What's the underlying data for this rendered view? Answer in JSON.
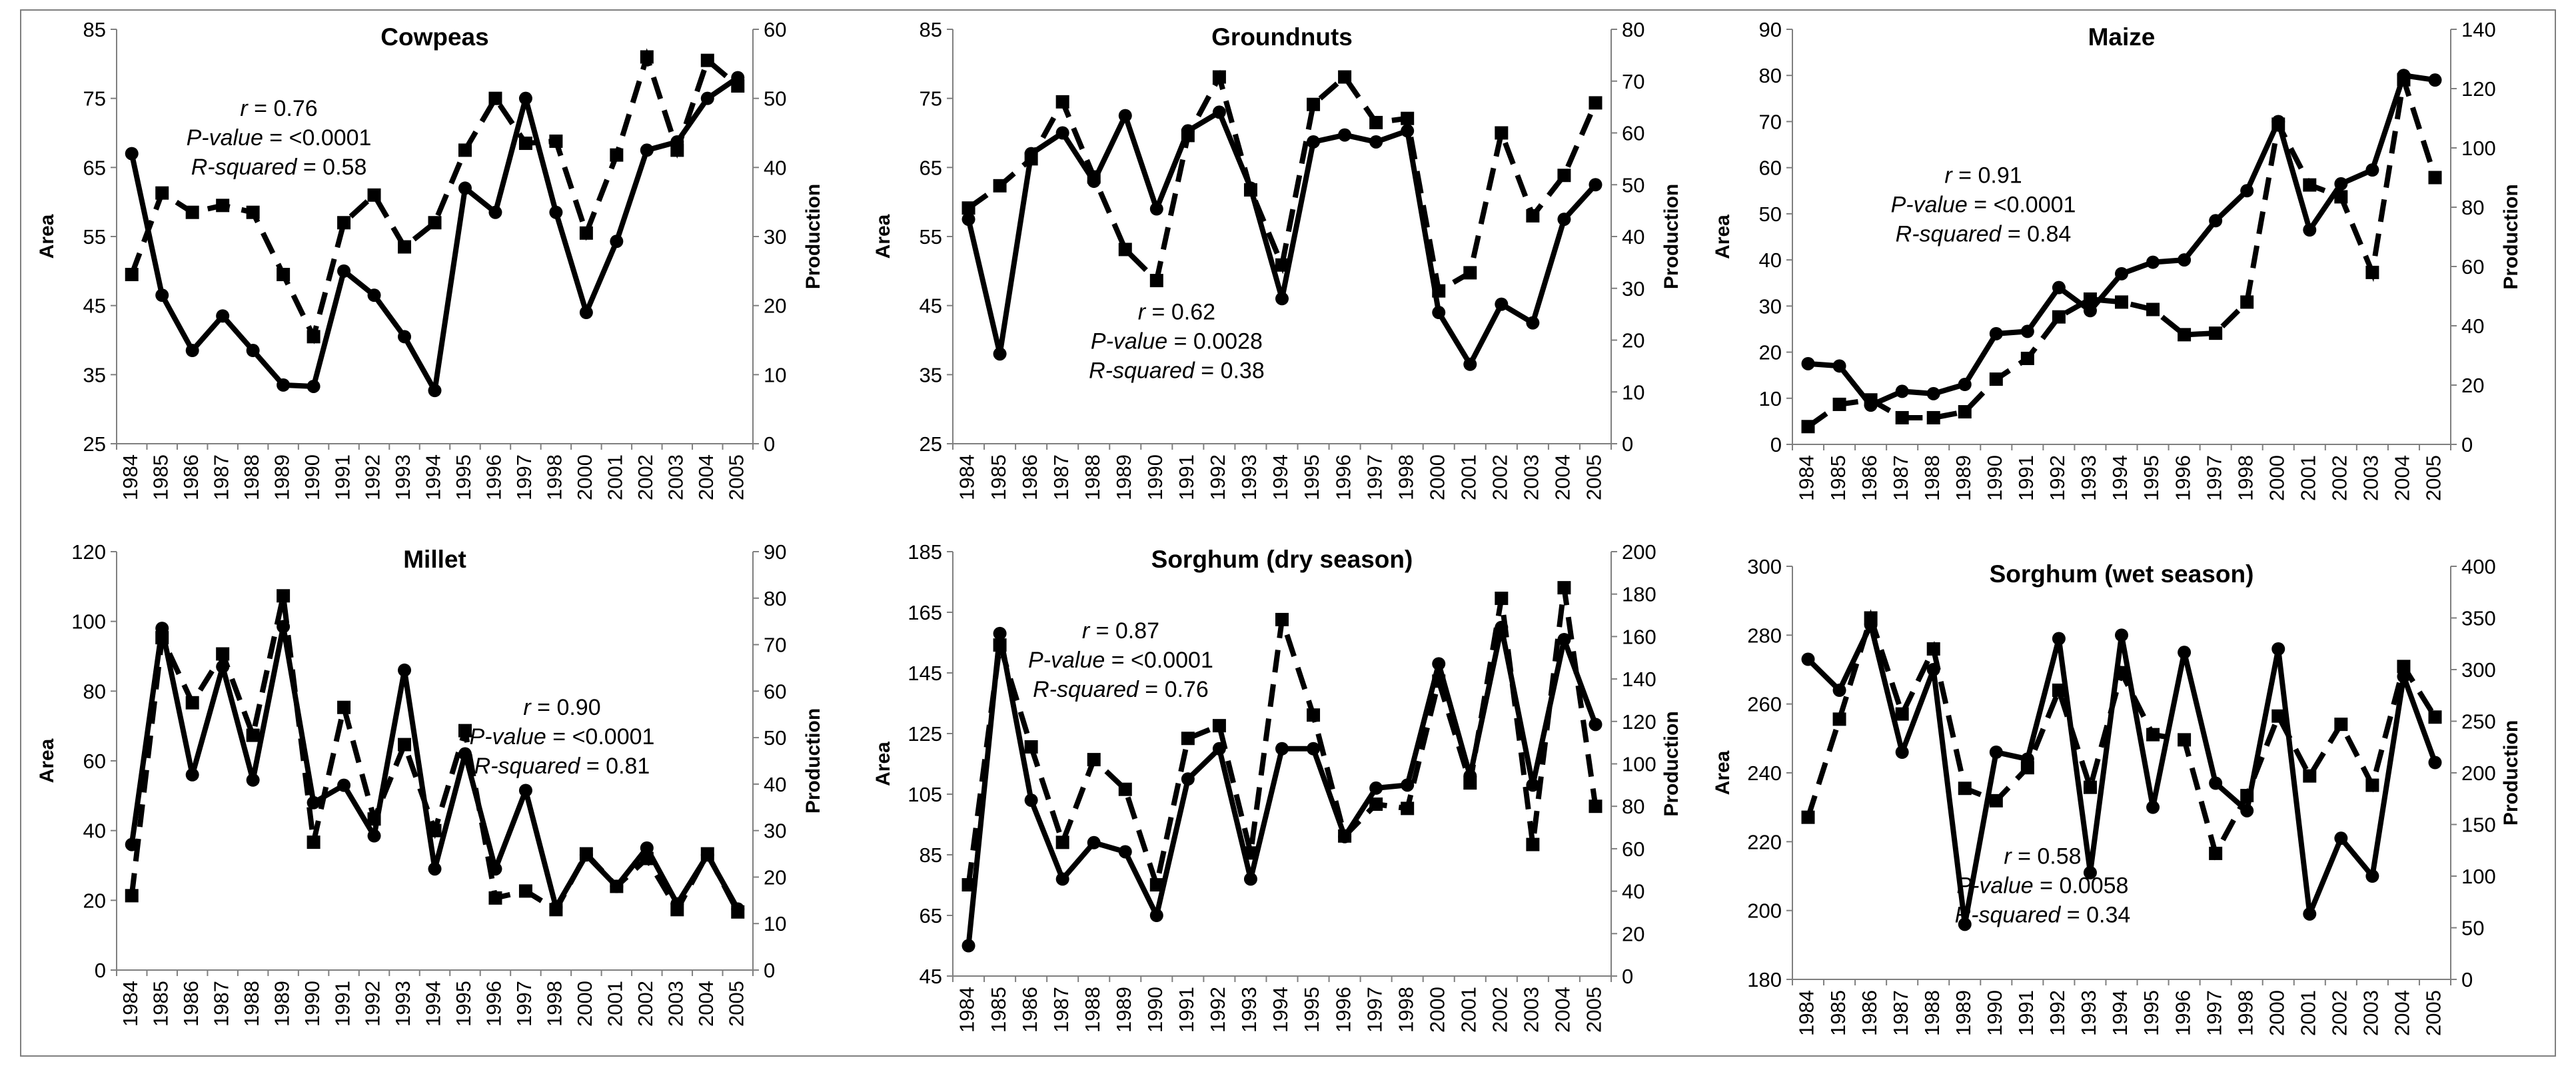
{
  "chart_data": [
    {
      "type": "line",
      "title": "Cowpeas",
      "x": [
        "1984",
        "1985",
        "1986",
        "1987",
        "1988",
        "1989",
        "1990",
        "1991",
        "1992",
        "1993",
        "1994",
        "1995",
        "1996",
        "1997",
        "1998",
        "2000",
        "2001",
        "2002",
        "2003",
        "2004",
        "2005"
      ],
      "series": [
        {
          "name": "Area",
          "axis": "left",
          "style": "solid-circle",
          "values": [
            67,
            46.5,
            38.5,
            43.5,
            38.5,
            33.5,
            33.3,
            50,
            46.5,
            40.5,
            32.7,
            62,
            58.5,
            75,
            58.5,
            44,
            54.3,
            67.5,
            68.7,
            75,
            78
          ]
        },
        {
          "name": "Production",
          "axis": "right",
          "style": "dashed-square",
          "values": [
            24.5,
            36.3,
            33.5,
            34.5,
            33.5,
            24.5,
            15.5,
            32,
            36,
            28.5,
            32,
            42.5,
            50,
            43.5,
            43.8,
            30.5,
            41.8,
            56,
            42.5,
            55.5,
            51.8
          ]
        }
      ],
      "yleft": {
        "label": "Area",
        "min": 25,
        "max": 85,
        "ticks": [
          25,
          35,
          45,
          55,
          65,
          75,
          85
        ]
      },
      "yright": {
        "label": "Production",
        "min": 0,
        "max": 60,
        "ticks": [
          0,
          10,
          20,
          30,
          40,
          50,
          60
        ]
      },
      "annotation": {
        "position": "upper-left",
        "lines": [
          {
            "pre": "",
            "ital": "r",
            "post": " = 0.76"
          },
          {
            "pre": "",
            "ital": "P-value",
            "post": " = <0.0001"
          },
          {
            "pre": "",
            "ital": "R-squared",
            "post": " = 0.58"
          }
        ]
      }
    },
    {
      "type": "line",
      "title": "Groundnuts",
      "x": [
        "1984",
        "1985",
        "1986",
        "1987",
        "1988",
        "1989",
        "1990",
        "1991",
        "1992",
        "1993",
        "1994",
        "1995",
        "1996",
        "1997",
        "1998",
        "2000",
        "2001",
        "2002",
        "2003",
        "2004",
        "2005"
      ],
      "series": [
        {
          "name": "Area",
          "axis": "left",
          "style": "solid-circle",
          "values": [
            57.5,
            38,
            67,
            70,
            63,
            72.5,
            59,
            70.3,
            73,
            62,
            46,
            68.7,
            69.7,
            68.7,
            70.3,
            44,
            36.5,
            45.2,
            42.5,
            57.5,
            62.5
          ]
        },
        {
          "name": "Production",
          "axis": "right",
          "style": "dashed-square",
          "values": [
            45.5,
            49.8,
            55,
            66,
            51.5,
            37.5,
            31.5,
            59.5,
            70.8,
            49,
            34.5,
            65.5,
            70.8,
            62,
            62.8,
            29.5,
            33,
            60,
            44,
            51.8,
            65.8
          ]
        }
      ],
      "yleft": {
        "label": "Area",
        "min": 25,
        "max": 85,
        "ticks": [
          25,
          35,
          45,
          55,
          65,
          75,
          85
        ]
      },
      "yright": {
        "label": "Production",
        "min": 0,
        "max": 80,
        "ticks": [
          0,
          10,
          20,
          30,
          40,
          50,
          60,
          70,
          80
        ]
      },
      "annotation": {
        "position": "lower-left",
        "lines": [
          {
            "pre": "",
            "ital": "r",
            "post": " = 0.62"
          },
          {
            "pre": "",
            "ital": "P-value",
            "post": " = 0.0028"
          },
          {
            "pre": "",
            "ital": "R-squared",
            "post": " = 0.38"
          }
        ]
      }
    },
    {
      "type": "line",
      "title": "Maize",
      "x": [
        "1984",
        "1985",
        "1986",
        "1987",
        "1988",
        "1989",
        "1990",
        "1991",
        "1992",
        "1993",
        "1994",
        "1995",
        "1996",
        "1997",
        "1998",
        "2000",
        "2001",
        "2002",
        "2003",
        "2004",
        "2005"
      ],
      "series": [
        {
          "name": "Area",
          "axis": "left",
          "style": "solid-circle",
          "values": [
            17.5,
            17,
            8.5,
            11.5,
            11,
            13,
            24,
            24.5,
            34,
            29,
            37,
            39.5,
            40,
            48.5,
            55,
            70,
            46.5,
            56.5,
            59.5,
            80,
            79
          ]
        },
        {
          "name": "Production",
          "axis": "right",
          "style": "dashed-square",
          "values": [
            6,
            13.5,
            15,
            9,
            9,
            11,
            22,
            29,
            43,
            49,
            48,
            45.5,
            37,
            37.5,
            48,
            108,
            87.5,
            83.5,
            58,
            123,
            90
          ]
        }
      ],
      "yleft": {
        "label": "Area",
        "min": 0,
        "max": 90,
        "ticks": [
          0,
          10,
          20,
          30,
          40,
          50,
          60,
          70,
          80,
          90
        ]
      },
      "yright": {
        "label": "Production",
        "min": 0,
        "max": 140,
        "ticks": [
          0,
          20,
          40,
          60,
          80,
          100,
          120,
          140
        ]
      },
      "annotation": {
        "position": "middle-left",
        "lines": [
          {
            "pre": "",
            "ital": "r",
            "post": " = 0.91"
          },
          {
            "pre": "",
            "ital": "P-value",
            "post": " = <0.0001"
          },
          {
            "pre": "",
            "ital": "R-squared",
            "post": " = 0.84"
          }
        ]
      }
    },
    {
      "type": "line",
      "title": "Millet",
      "x": [
        "1984",
        "1985",
        "1986",
        "1987",
        "1988",
        "1989",
        "1990",
        "1991",
        "1992",
        "1993",
        "1994",
        "1995",
        "1996",
        "1997",
        "1998",
        "2000",
        "2001",
        "2002",
        "2003",
        "2004",
        "2005"
      ],
      "series": [
        {
          "name": "Area",
          "axis": "left",
          "style": "solid-circle",
          "values": [
            36,
            98,
            56,
            87,
            54.5,
            98.5,
            48,
            53,
            38.5,
            86,
            29,
            62,
            29,
            51.5,
            18,
            33,
            24,
            35,
            19,
            33,
            17.5
          ]
        },
        {
          "name": "Production",
          "axis": "right",
          "style": "dashed-square",
          "values": [
            16,
            71.5,
            57.5,
            68,
            50.5,
            80.5,
            27.5,
            56.5,
            32.5,
            48.5,
            30,
            51.5,
            15.5,
            17,
            13,
            25,
            18,
            24,
            13,
            25,
            12.5
          ]
        }
      ],
      "yleft": {
        "label": "Area",
        "min": 0,
        "max": 120,
        "ticks": [
          0,
          20,
          40,
          60,
          80,
          100,
          120
        ]
      },
      "yright": {
        "label": "Production",
        "min": 0,
        "max": 90,
        "ticks": [
          0,
          10,
          20,
          30,
          40,
          50,
          60,
          70,
          80,
          90
        ]
      },
      "annotation": {
        "position": "middle-right",
        "lines": [
          {
            "pre": "",
            "ital": "r",
            "post": " = 0.90"
          },
          {
            "pre": "",
            "ital": "P-value",
            "post": " = <0.0001"
          },
          {
            "pre": "",
            "ital": "R-squared",
            "post": " = 0.81"
          }
        ]
      }
    },
    {
      "type": "line",
      "title": "Sorghum (dry season)",
      "x": [
        "1984",
        "1985",
        "1986",
        "1987",
        "1988",
        "1989",
        "1990",
        "1991",
        "1992",
        "1993",
        "1994",
        "1995",
        "1996",
        "1997",
        "1998",
        "2000",
        "2001",
        "2002",
        "2003",
        "2004",
        "2005"
      ],
      "series": [
        {
          "name": "Area",
          "axis": "left",
          "style": "solid-circle",
          "values": [
            55,
            158,
            103,
            77,
            89,
            86,
            65,
            110,
            120,
            77,
            120,
            120,
            91,
            107,
            108,
            148,
            111,
            160,
            108,
            156,
            128
          ]
        },
        {
          "name": "Production",
          "axis": "right",
          "style": "dashed-square",
          "values": [
            43,
            156,
            108,
            63,
            102,
            88,
            43,
            112,
            118,
            58,
            168,
            123,
            66,
            81,
            79,
            139,
            91,
            178,
            62,
            183,
            80
          ]
        }
      ],
      "yleft": {
        "label": "Area",
        "min": 45,
        "max": 185,
        "ticks": [
          45,
          65,
          85,
          105,
          125,
          145,
          165,
          185
        ]
      },
      "yright": {
        "label": "Production",
        "min": 0,
        "max": 200,
        "ticks": [
          0,
          20,
          40,
          60,
          80,
          100,
          120,
          140,
          160,
          180,
          200
        ]
      },
      "annotation": {
        "position": "upper-left",
        "lines": [
          {
            "pre": "",
            "ital": "r",
            "post": " = 0.87"
          },
          {
            "pre": "",
            "ital": "P-value",
            "post": " = <0.0001"
          },
          {
            "pre": "",
            "ital": "R-squared",
            "post": " = 0.76"
          }
        ]
      }
    },
    {
      "type": "line",
      "title": "Sorghum (wet season)",
      "x": [
        "1984",
        "1985",
        "1986",
        "1987",
        "1988",
        "1989",
        "1990",
        "1991",
        "1992",
        "1993",
        "1994",
        "1995",
        "1996",
        "1997",
        "1998",
        "2000",
        "2001",
        "2002",
        "2003",
        "2004",
        "2005"
      ],
      "series": [
        {
          "name": "Area",
          "axis": "left",
          "style": "solid-circle",
          "values": [
            273,
            264,
            283,
            246,
            270,
            196,
            246,
            244,
            279,
            211,
            280,
            230,
            275,
            237,
            229,
            276,
            199,
            221,
            210,
            268,
            243
          ]
        },
        {
          "name": "Production",
          "axis": "right",
          "style": "dashed-square",
          "values": [
            157,
            252,
            350,
            257,
            320,
            185,
            173,
            205,
            280,
            186,
            297,
            237,
            232,
            122,
            178,
            255,
            197,
            247,
            188,
            303,
            254
          ]
        }
      ],
      "yleft": {
        "label": "Area",
        "min": 180,
        "max": 300,
        "ticks": [
          180,
          200,
          220,
          240,
          260,
          280,
          300
        ]
      },
      "yright": {
        "label": "Production",
        "min": 0,
        "max": 400,
        "ticks": [
          0,
          50,
          100,
          150,
          200,
          250,
          300,
          350,
          400
        ]
      },
      "annotation": {
        "position": "lower-center",
        "lines": [
          {
            "pre": "",
            "ital": "r",
            "post": " = 0.58"
          },
          {
            "pre": "",
            "ital": "P-value",
            "post": " = 0.0058"
          },
          {
            "pre": "",
            "ital": "R-squared",
            "post": " = 0.34"
          }
        ]
      }
    }
  ]
}
